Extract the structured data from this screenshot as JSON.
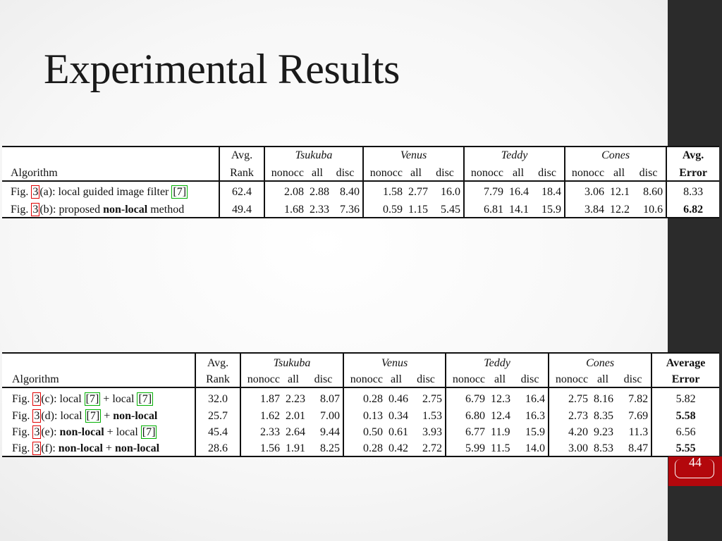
{
  "title": "Experimental Results",
  "slide_number": "44",
  "table1": {
    "headers": {
      "algorithm": "Algorithm",
      "rank_top": "Avg.",
      "rank_bottom": "Rank",
      "groups": [
        "Tsukuba",
        "Venus",
        "Teddy",
        "Cones"
      ],
      "sub": [
        "nonocc",
        "all",
        "disc"
      ],
      "err_top": "Avg.",
      "err_bottom": "Error"
    },
    "rows": [
      {
        "pre": "Fig. ",
        "fig": "3",
        "label": "(a): local guided image filter ",
        "ref": "[7]",
        "rank": "62.4",
        "v": [
          "2.08",
          "2.88",
          "8.40",
          "1.58",
          "2.77",
          "16.0",
          "7.79",
          "16.4",
          "18.4",
          "3.06",
          "12.1",
          "8.60"
        ],
        "err": "8.33"
      },
      {
        "pre": "Fig. ",
        "fig": "3",
        "label": "(b): proposed ",
        "bold": "non-local",
        "post": " method",
        "rank": "49.4",
        "v": [
          "1.68",
          "2.33",
          "7.36",
          "0.59",
          "1.15",
          "5.45",
          "6.81",
          "14.1",
          "15.9",
          "3.84",
          "12.2",
          "10.6"
        ],
        "err": "6.82"
      }
    ]
  },
  "table2": {
    "headers": {
      "algorithm": "Algorithm",
      "rank_top": "Avg.",
      "rank_bottom": "Rank",
      "groups": [
        "Tsukuba",
        "Venus",
        "Teddy",
        "Cones"
      ],
      "sub": [
        "nonocc",
        "all",
        "disc"
      ],
      "err_top": "Average",
      "err_bottom": "Error"
    },
    "rows": [
      {
        "a": "local ",
        "ra": "[7]",
        "b": "local ",
        "rb": "[7]",
        "fig": "3",
        "id": "(c): ",
        "rank": "32.0",
        "v": [
          "1.87",
          "2.23",
          "8.07",
          "0.28",
          "0.46",
          "2.75",
          "6.79",
          "12.3",
          "16.4",
          "2.75",
          "8.16",
          "7.82"
        ],
        "err": "5.82"
      },
      {
        "a": "local ",
        "ra": "[7]",
        "b": "non-local",
        "rb": "",
        "fig": "3",
        "id": "(d): ",
        "rank": "25.7",
        "v": [
          "1.62",
          "2.01",
          "7.00",
          "0.13",
          "0.34",
          "1.53",
          "6.80",
          "12.4",
          "16.3",
          "2.73",
          "8.35",
          "7.69"
        ],
        "err": "5.58"
      },
      {
        "a": "non-local",
        "ra": "",
        "b": "local ",
        "rb": "[7]",
        "fig": "3",
        "id": "(e): ",
        "rank": "45.4",
        "v": [
          "2.33",
          "2.64",
          "9.44",
          "0.50",
          "0.61",
          "3.93",
          "6.77",
          "11.9",
          "15.9",
          "4.20",
          "9.23",
          "11.3"
        ],
        "err": "6.56"
      },
      {
        "a": "non-local",
        "ra": "",
        "b": "non-local",
        "rb": "",
        "fig": "3",
        "id": "(f): ",
        "rank": "28.6",
        "v": [
          "1.56",
          "1.91",
          "8.25",
          "0.28",
          "0.42",
          "2.72",
          "5.99",
          "11.5",
          "14.0",
          "3.00",
          "8.53",
          "8.47"
        ],
        "err": "5.55"
      }
    ],
    "connector": " + ",
    "fig_prefix": "Fig. "
  }
}
